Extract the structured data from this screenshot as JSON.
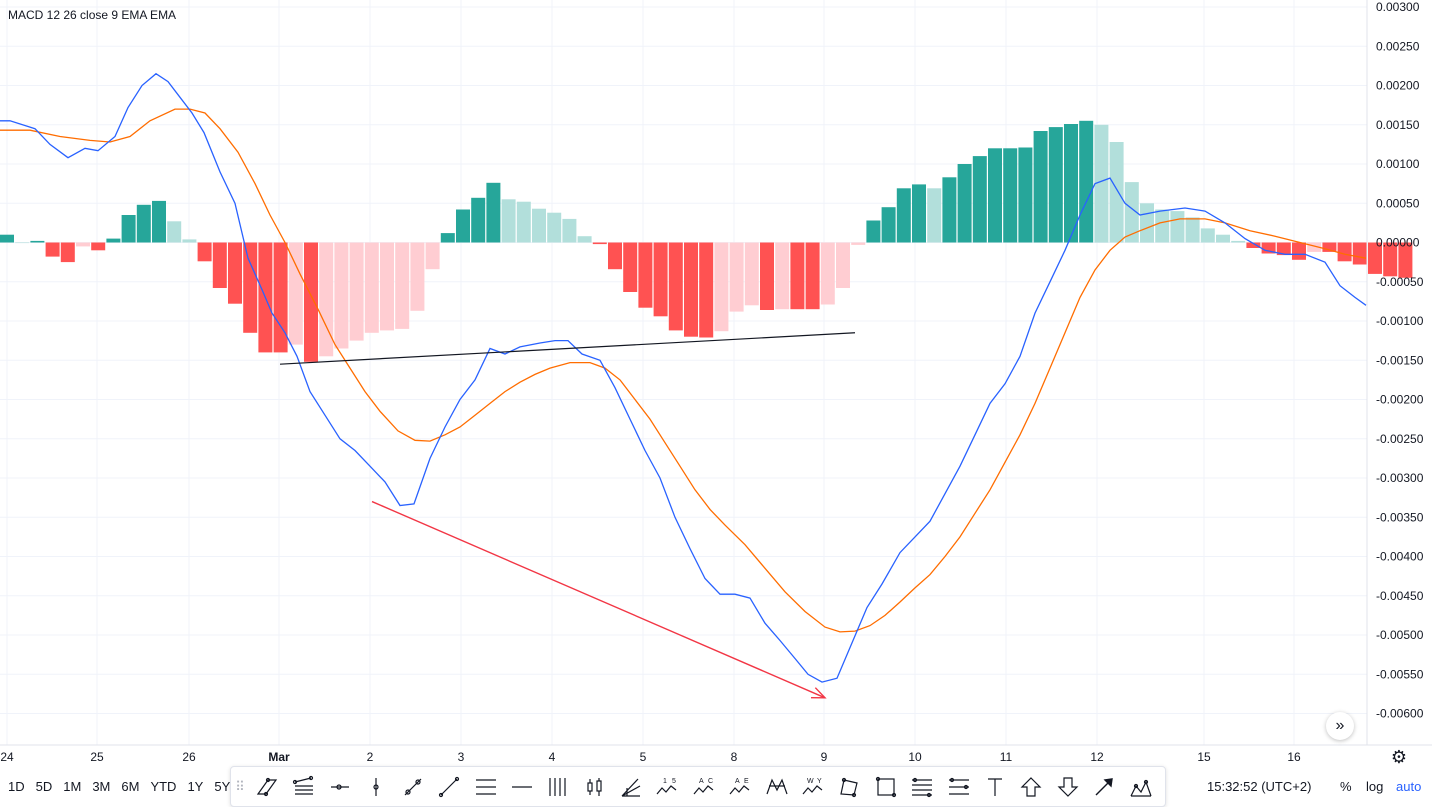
{
  "indicator_title": "MACD 12 26 close 9 EMA EMA",
  "chart_data": {
    "type": "line",
    "title": "MACD 12 26 close 9 EMA EMA",
    "ylim": [
      -0.0065,
      0.003
    ],
    "y_ticks": [
      "0.00300",
      "0.00250",
      "0.00200",
      "0.00150",
      "0.00100",
      "0.00050",
      "0.00000",
      "-0.00050",
      "-0.00100",
      "-0.00150",
      "-0.00200",
      "-0.00250",
      "-0.00300",
      "-0.00350",
      "-0.00400",
      "-0.00450",
      "-0.00500",
      "-0.00550",
      "-0.00600"
    ],
    "x_ticks": [
      "24",
      "25",
      "26",
      "Mar",
      "2",
      "3",
      "4",
      "5",
      "8",
      "9",
      "10",
      "11",
      "12",
      "15",
      "16"
    ],
    "x_tick_bold": "Mar",
    "grid": true,
    "colors": {
      "macd_line": "#2962ff",
      "signal_line": "#ff6d00",
      "hist_pos_strong": "#26a69a",
      "hist_pos_weak": "#b2dfdb",
      "hist_neg_strong": "#ff5252",
      "hist_neg_weak": "#ffcdd2",
      "trendline": "#131722",
      "arrow": "#f23645"
    },
    "histogram": [
      0.0001,
      0.0,
      2e-05,
      -0.00018,
      -0.00025,
      -5e-05,
      -0.0001,
      5e-05,
      0.00035,
      0.00048,
      0.00053,
      0.00027,
      4e-05,
      -0.00024,
      -0.00058,
      -0.00078,
      -0.00115,
      -0.0014,
      -0.0014,
      -0.0013,
      -0.00152,
      -0.00145,
      -0.00135,
      -0.00125,
      -0.00115,
      -0.00112,
      -0.0011,
      -0.00087,
      -0.00034,
      0.00012,
      0.00042,
      0.00057,
      0.00076,
      0.00055,
      0.00052,
      0.00043,
      0.00038,
      0.0003,
      8e-05,
      -2e-05,
      -0.00034,
      -0.00063,
      -0.00083,
      -0.00094,
      -0.00112,
      -0.0012,
      -0.00121,
      -0.00113,
      -0.00088,
      -0.0008,
      -0.00086,
      -0.00085,
      -0.00085,
      -0.00085,
      -0.00079,
      -0.00058,
      -3e-05,
      0.00028,
      0.00045,
      0.00069,
      0.00074,
      0.00069,
      0.00083,
      0.001,
      0.0011,
      0.0012,
      0.0012,
      0.00121,
      0.00142,
      0.00147,
      0.00151,
      0.00155,
      0.0015,
      0.00128,
      0.00077,
      0.0005,
      0.00042,
      0.0004,
      0.00032,
      0.00018,
      0.0001,
      2e-05,
      -7e-05,
      -0.00014,
      -0.00016,
      -0.00022,
      -0.00012,
      -0.00012,
      -0.00024,
      -0.00028,
      -0.0004,
      -0.00043,
      -0.00045
    ],
    "macd_line": [
      [
        0,
        0.00155
      ],
      [
        10,
        0.00155
      ],
      [
        35,
        0.00145
      ],
      [
        50,
        0.00125
      ],
      [
        68,
        0.00108
      ],
      [
        85,
        0.0012
      ],
      [
        98,
        0.00117
      ],
      [
        115,
        0.00135
      ],
      [
        128,
        0.00172
      ],
      [
        142,
        0.002
      ],
      [
        156,
        0.00215
      ],
      [
        168,
        0.00205
      ],
      [
        180,
        0.00185
      ],
      [
        192,
        0.00165
      ],
      [
        204,
        0.0014
      ],
      [
        220,
        0.0009
      ],
      [
        235,
        0.0005
      ],
      [
        248,
        -0.0002
      ],
      [
        262,
        -0.0006
      ],
      [
        272,
        -0.0009
      ],
      [
        285,
        -0.00115
      ],
      [
        297,
        -0.00145
      ],
      [
        310,
        -0.0019
      ],
      [
        325,
        -0.0022
      ],
      [
        340,
        -0.0025
      ],
      [
        355,
        -0.00265
      ],
      [
        370,
        -0.00285
      ],
      [
        385,
        -0.00305
      ],
      [
        400,
        -0.00335
      ],
      [
        414,
        -0.00333
      ],
      [
        430,
        -0.00275
      ],
      [
        445,
        -0.00235
      ],
      [
        460,
        -0.002
      ],
      [
        475,
        -0.00175
      ],
      [
        490,
        -0.00135
      ],
      [
        505,
        -0.00142
      ],
      [
        520,
        -0.00133
      ],
      [
        540,
        -0.00128
      ],
      [
        555,
        -0.00125
      ],
      [
        568,
        -0.00125
      ],
      [
        582,
        -0.00142
      ],
      [
        600,
        -0.0015
      ],
      [
        615,
        -0.00185
      ],
      [
        630,
        -0.00225
      ],
      [
        645,
        -0.00265
      ],
      [
        660,
        -0.003
      ],
      [
        675,
        -0.0035
      ],
      [
        690,
        -0.0039
      ],
      [
        705,
        -0.00428
      ],
      [
        720,
        -0.00448
      ],
      [
        735,
        -0.00448
      ],
      [
        750,
        -0.00453
      ],
      [
        765,
        -0.00485
      ],
      [
        780,
        -0.00507
      ],
      [
        795,
        -0.0053
      ],
      [
        808,
        -0.0055
      ],
      [
        822,
        -0.0056
      ],
      [
        837,
        -0.00555
      ],
      [
        852,
        -0.0051
      ],
      [
        867,
        -0.00465
      ],
      [
        882,
        -0.00435
      ],
      [
        900,
        -0.00395
      ],
      [
        915,
        -0.00375
      ],
      [
        930,
        -0.00355
      ],
      [
        945,
        -0.0032
      ],
      [
        960,
        -0.00285
      ],
      [
        975,
        -0.00245
      ],
      [
        990,
        -0.00205
      ],
      [
        1005,
        -0.0018
      ],
      [
        1020,
        -0.00145
      ],
      [
        1035,
        -0.0009
      ],
      [
        1050,
        -0.0005
      ],
      [
        1065,
        -0.0001
      ],
      [
        1080,
        0.00035
      ],
      [
        1095,
        0.00075
      ],
      [
        1110,
        0.00082
      ],
      [
        1125,
        0.0005
      ],
      [
        1140,
        0.00035
      ],
      [
        1160,
        0.0004
      ],
      [
        1185,
        0.00044
      ],
      [
        1205,
        0.0004
      ],
      [
        1225,
        0.00025
      ],
      [
        1245,
        5e-05
      ],
      [
        1265,
        -0.0001
      ],
      [
        1285,
        -0.00015
      ],
      [
        1305,
        -0.00015
      ],
      [
        1325,
        -0.00025
      ],
      [
        1340,
        -0.00055
      ],
      [
        1355,
        -0.0007
      ],
      [
        1366,
        -0.0008
      ]
    ],
    "signal_line": [
      [
        0,
        0.00143
      ],
      [
        30,
        0.00143
      ],
      [
        60,
        0.00135
      ],
      [
        90,
        0.0013
      ],
      [
        110,
        0.00128
      ],
      [
        130,
        0.00135
      ],
      [
        150,
        0.00155
      ],
      [
        175,
        0.0017
      ],
      [
        190,
        0.0017
      ],
      [
        205,
        0.00165
      ],
      [
        220,
        0.00145
      ],
      [
        238,
        0.00115
      ],
      [
        255,
        0.00075
      ],
      [
        270,
        0.00035
      ],
      [
        285,
        0.0
      ],
      [
        300,
        -0.0004
      ],
      [
        318,
        -0.00085
      ],
      [
        335,
        -0.0013
      ],
      [
        350,
        -0.0016
      ],
      [
        365,
        -0.0019
      ],
      [
        380,
        -0.00215
      ],
      [
        398,
        -0.0024
      ],
      [
        415,
        -0.00252
      ],
      [
        430,
        -0.00253
      ],
      [
        445,
        -0.00245
      ],
      [
        460,
        -0.00235
      ],
      [
        475,
        -0.0022
      ],
      [
        490,
        -0.00205
      ],
      [
        505,
        -0.0019
      ],
      [
        520,
        -0.00178
      ],
      [
        535,
        -0.00168
      ],
      [
        550,
        -0.0016
      ],
      [
        570,
        -0.00153
      ],
      [
        590,
        -0.00153
      ],
      [
        605,
        -0.0016
      ],
      [
        620,
        -0.00175
      ],
      [
        635,
        -0.002
      ],
      [
        650,
        -0.00225
      ],
      [
        665,
        -0.00255
      ],
      [
        680,
        -0.00285
      ],
      [
        695,
        -0.00315
      ],
      [
        710,
        -0.0034
      ],
      [
        725,
        -0.0036
      ],
      [
        745,
        -0.00385
      ],
      [
        765,
        -0.00415
      ],
      [
        785,
        -0.00445
      ],
      [
        805,
        -0.0047
      ],
      [
        825,
        -0.0049
      ],
      [
        840,
        -0.00496
      ],
      [
        855,
        -0.00495
      ],
      [
        870,
        -0.00488
      ],
      [
        885,
        -0.00475
      ],
      [
        900,
        -0.00458
      ],
      [
        915,
        -0.0044
      ],
      [
        930,
        -0.00423
      ],
      [
        945,
        -0.004
      ],
      [
        960,
        -0.00375
      ],
      [
        975,
        -0.00345
      ],
      [
        990,
        -0.00315
      ],
      [
        1005,
        -0.0028
      ],
      [
        1020,
        -0.00245
      ],
      [
        1035,
        -0.00205
      ],
      [
        1050,
        -0.0016
      ],
      [
        1065,
        -0.00115
      ],
      [
        1080,
        -0.0007
      ],
      [
        1095,
        -0.00035
      ],
      [
        1110,
        -0.0001
      ],
      [
        1125,
        7e-05
      ],
      [
        1140,
        0.00015
      ],
      [
        1160,
        0.00025
      ],
      [
        1180,
        0.0003
      ],
      [
        1205,
        0.0003
      ],
      [
        1225,
        0.00025
      ],
      [
        1250,
        0.00015
      ],
      [
        1275,
        8e-05
      ],
      [
        1300,
        0.0
      ],
      [
        1325,
        -8e-05
      ],
      [
        1345,
        -0.00015
      ],
      [
        1366,
        -0.0002
      ]
    ],
    "trendline": [
      [
        280,
        -0.00155
      ],
      [
        855,
        -0.00115
      ]
    ],
    "arrow": [
      [
        372,
        -0.0033
      ],
      [
        825,
        -0.0058
      ]
    ]
  },
  "scroll_button": "»",
  "settings_icon": "gear-icon",
  "bottom": {
    "ranges": [
      "1D",
      "5D",
      "1M",
      "3M",
      "6M",
      "YTD",
      "1Y",
      "5Y"
    ],
    "time": "15:32:52 (UTC+2)",
    "percent": "%",
    "log": "log",
    "auto": "auto"
  },
  "drawing_toolbar": {
    "tool_icons": [
      "parallel-channel-icon",
      "regression-trend-icon",
      "horizontal-ray-icon",
      "vertical-line-icon",
      "trend-angle-icon",
      "trend-line-icon",
      "horizontal-lines-icon",
      "horizontal-line-icon",
      "vertical-lines-icon",
      "candles-icon",
      "pitchfork-icon",
      "elliott-impulse-icon",
      "abcd-pattern-icon",
      "xabcd-pattern-icon",
      "wxy-pattern-icon",
      "head-shoulders-icon",
      "triangle-pattern-icon",
      "rectangle-icon",
      "fib-retracement-icon",
      "fib-extension-icon",
      "text-icon",
      "arrow-up-icon",
      "arrow-down-icon",
      "arrow-marker-icon",
      "cycles-icon"
    ],
    "labels": {
      "elliott": [
        "1",
        "5"
      ],
      "abcd": [
        "A",
        "C"
      ],
      "xabcd": [
        "A",
        "E"
      ],
      "wxy": [
        "W",
        "Y"
      ],
      "text": "T"
    }
  }
}
